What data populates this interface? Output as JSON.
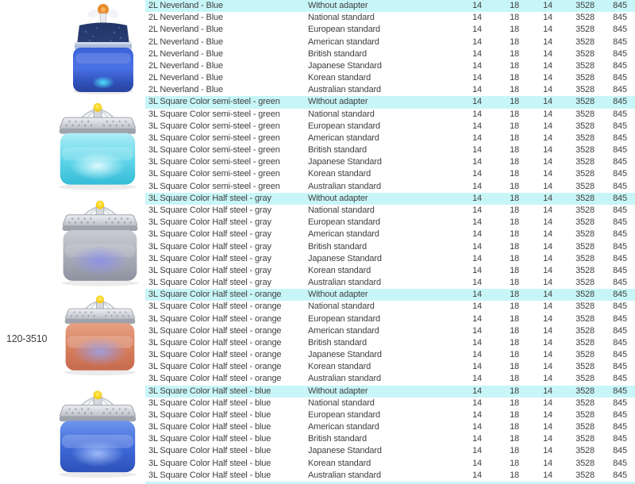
{
  "left_panel": {
    "sku_label": "120-3510",
    "images": [
      {
        "name": "2L Neverland - Blue fountain",
        "body_color": "#3a5fd0",
        "accent": "#e88a2e",
        "glow": "#40e8ff"
      },
      {
        "name": "3L Square Color semi-steel - green fountain",
        "body_color": "#55d3e8",
        "lid": "silver",
        "knob": "#ffd83a"
      },
      {
        "name": "3L Square Color Half steel - gray fountain",
        "body_color": "#a9adb8",
        "glow": "#8d90e8",
        "knob": "#ffd83a"
      },
      {
        "name": "3L Square Color Half steel - orange fountain",
        "body_color": "#d97f5e",
        "glow": "#9aa0e8",
        "knob": "#ffd83a"
      },
      {
        "name": "3L Square Color Half steel - blue fountain",
        "body_color": "#3b66d8",
        "glow": "#9db9f8",
        "knob": "#ffd83a"
      }
    ]
  },
  "table": {
    "highlight_color": "#c8f6f8",
    "text_color": "#3f3f3f",
    "adapters": [
      "Without adapter",
      "National standard",
      "European standard",
      "American standard",
      "British standard",
      "Japanese Standard",
      "Korean standard",
      "Australian standard"
    ],
    "groups": [
      {
        "product": "2L Neverland - Blue",
        "values": [
          "14",
          "18",
          "14",
          "3528",
          "845"
        ]
      },
      {
        "product": "3L Square Color semi-steel - green",
        "values": [
          "14",
          "18",
          "14",
          "3528",
          "845"
        ]
      },
      {
        "product": "3L Square Color Half steel - gray",
        "values": [
          "14",
          "18",
          "14",
          "3528",
          "845"
        ]
      },
      {
        "product": "3L Square Color Half steel - orange",
        "values": [
          "14",
          "18",
          "14",
          "3528",
          "845"
        ]
      },
      {
        "product": "3L Square Color Half steel - blue",
        "values": [
          "14",
          "18",
          "14",
          "3528",
          "845"
        ]
      }
    ]
  }
}
